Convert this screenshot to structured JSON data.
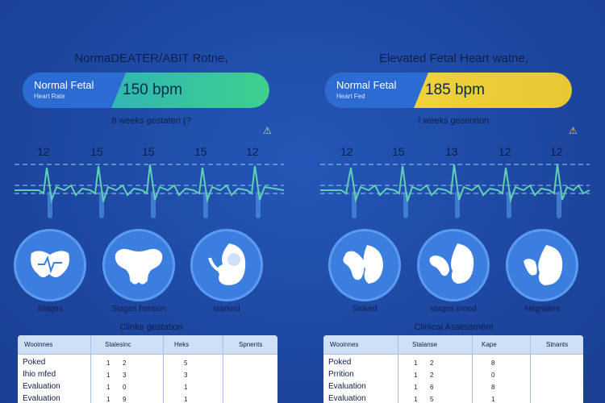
{
  "colors": {
    "background": "#1f4ba6",
    "normal_gradient": [
      "#2bb3c9",
      "#3fd08a"
    ],
    "elevated_gradient": [
      "#f2d33e",
      "#e8c935"
    ],
    "warning": "#ffd23f",
    "ecg_line": "#5fd0b4",
    "circle": "#3b7ee0"
  },
  "panels": [
    {
      "id": "normal",
      "title": "NormaDEATER/ABIT Rotne,",
      "pill": {
        "label": "Normal Fetal",
        "sublabel": "Heart Rate",
        "value": "150 bpm"
      },
      "weeks": "8 weeks gestaten (?",
      "warning_icon": "warning-triangle-icon",
      "rates": [
        "12",
        "15",
        "15",
        "15",
        "12"
      ],
      "circles": [
        {
          "icon": "heart-monitor-icon",
          "label": "Stages"
        },
        {
          "icon": "placenta-icon",
          "label": "Stages frention"
        },
        {
          "icon": "fetus-icon",
          "label": "starlord"
        }
      ],
      "table": {
        "title": "Clinke gestation",
        "headers": [
          "Wooinnes",
          "Stalesinc",
          "Heks",
          "Spnents"
        ],
        "rows": [
          {
            "label": "Poked",
            "a": "1",
            "b": "2",
            "c": "5"
          },
          {
            "label": "Ihio mfed",
            "a": "1",
            "b": "3",
            "c": "3"
          },
          {
            "label": "Evaluation",
            "a": "1",
            "b": "0",
            "c": "1"
          },
          {
            "label": "Evaluation",
            "a": "1",
            "b": "9",
            "c": "1"
          }
        ]
      }
    },
    {
      "id": "elevated",
      "title": "Elevated Fetal Heart watne,",
      "pill": {
        "label": "Normal Fetal",
        "sublabel": "Heart Fed",
        "value": "185 bpm"
      },
      "weeks": "l weeks gesention",
      "warning_icon": "warning-triangle-icon",
      "rates": [
        "12",
        "15",
        "13",
        "12",
        "12"
      ],
      "circles": [
        {
          "icon": "placenta-icon",
          "label": "Stoked"
        },
        {
          "icon": "placenta-fetus-icon",
          "label": "stages Inood"
        },
        {
          "icon": "fetus-icon",
          "label": "Negralent"
        }
      ],
      "table": {
        "title": "Clinical Assessment",
        "headers": [
          "Wooinnes",
          "Stalanse",
          "Kape",
          "Stnants"
        ],
        "rows": [
          {
            "label": "Poked",
            "a": "1",
            "b": "2",
            "c": "8"
          },
          {
            "label": "Prrition",
            "a": "1",
            "b": "2",
            "c": "0"
          },
          {
            "label": "Evaluation",
            "a": "1",
            "b": "6",
            "c": "8"
          },
          {
            "label": "Evaluation",
            "a": "1",
            "b": "5",
            "c": "1"
          }
        ]
      }
    }
  ]
}
